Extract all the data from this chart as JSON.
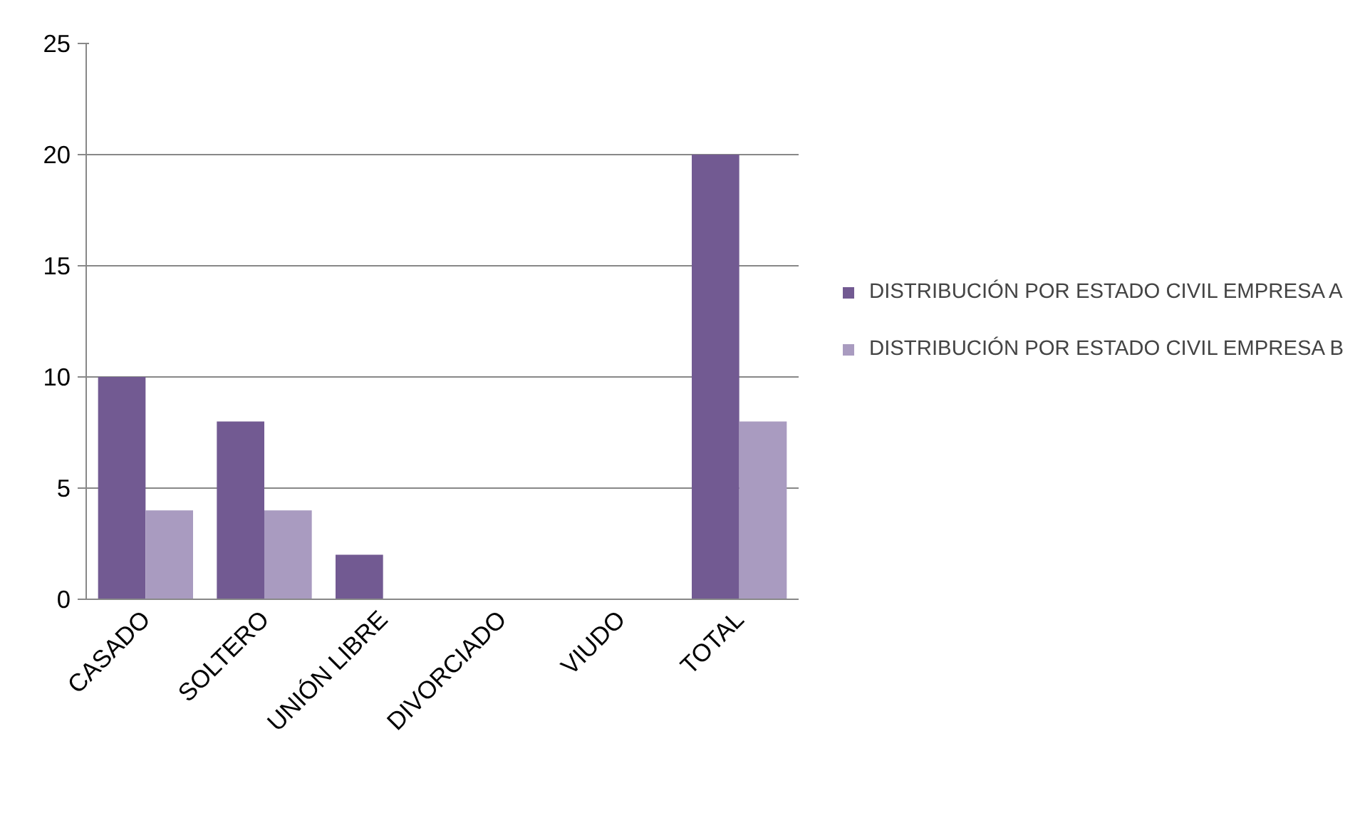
{
  "chart_data": {
    "type": "bar",
    "categories": [
      "CASADO",
      "SOLTERO",
      "UNIÓN LIBRE",
      "DIVORCIADO",
      "VIUDO",
      "TOTAL"
    ],
    "series": [
      {
        "name": "DISTRIBUCIÓN POR ESTADO CIVIL EMPRESA A",
        "color": "#725a92",
        "values": [
          10,
          8,
          2,
          0,
          0,
          20
        ]
      },
      {
        "name": "DISTRIBUCIÓN POR ESTADO CIVIL EMPRESA B",
        "color": "#a99bc0",
        "values": [
          4,
          4,
          0,
          0,
          0,
          8
        ]
      }
    ],
    "ylim": [
      0,
      25
    ],
    "yticks": [
      0,
      5,
      10,
      15,
      20,
      25
    ],
    "grid": "y",
    "legend": "right"
  }
}
